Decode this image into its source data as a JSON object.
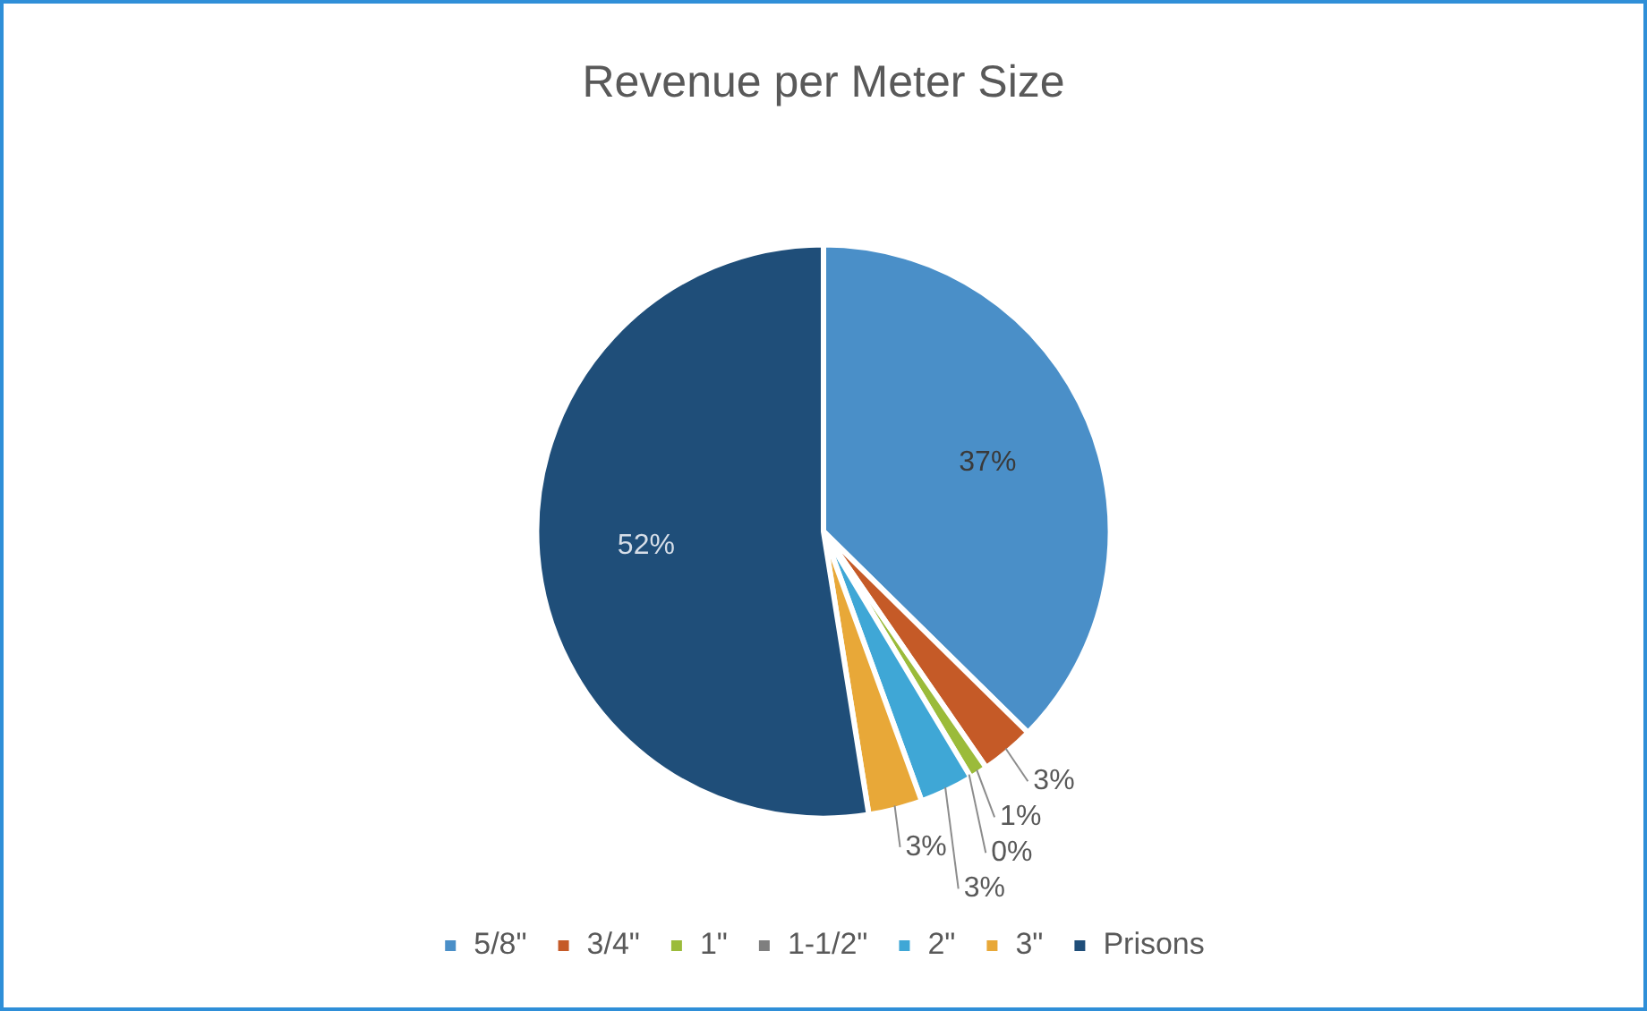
{
  "chart_data": {
    "type": "pie",
    "title": "Revenue per Meter Size",
    "categories": [
      "5/8\"",
      "3/4\"",
      "1\"",
      "1-1/2\"",
      "2\"",
      "3\"",
      "Prisons"
    ],
    "values": [
      37,
      3,
      1,
      0,
      3,
      3,
      52
    ],
    "value_labels": [
      "37%",
      "3%",
      "1%",
      "0%",
      "3%",
      "3%",
      "52%"
    ],
    "colors": [
      "#4a8fc8",
      "#c55a27",
      "#9bbb3a",
      "#7f7f7f",
      "#3fa7d6",
      "#e8a838",
      "#1f4e79"
    ],
    "legend": "bottom"
  }
}
